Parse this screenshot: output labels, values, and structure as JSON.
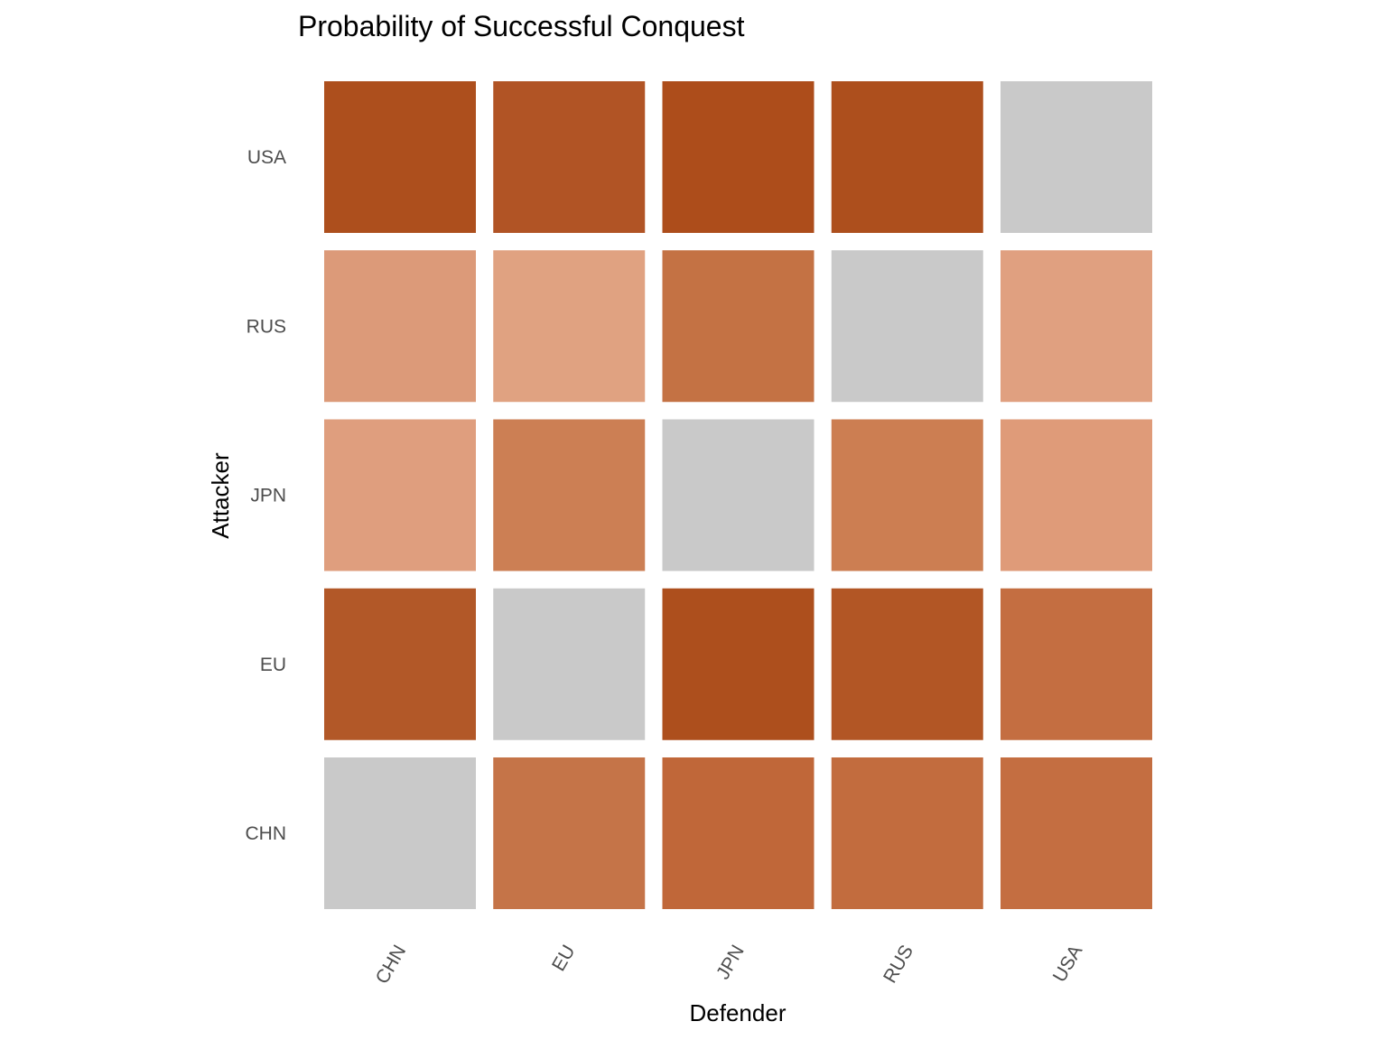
{
  "chart_data": {
    "type": "heatmap",
    "title": "Probability of Successful Conquest",
    "xlabel": "Defender",
    "ylabel": "Attacker",
    "x_categories": [
      "CHN",
      "EU",
      "JPN",
      "RUS",
      "USA"
    ],
    "y_categories": [
      "CHN",
      "EU",
      "JPN",
      "RUS",
      "USA"
    ],
    "cells": [
      {
        "attacker": "USA",
        "defender": "CHN",
        "fill": "#ad4f1d"
      },
      {
        "attacker": "USA",
        "defender": "EU",
        "fill": "#b15425"
      },
      {
        "attacker": "USA",
        "defender": "JPN",
        "fill": "#ad4d1b"
      },
      {
        "attacker": "USA",
        "defender": "RUS",
        "fill": "#ad4f1d"
      },
      {
        "attacker": "USA",
        "defender": "USA",
        "fill": "#c9c9c9"
      },
      {
        "attacker": "RUS",
        "defender": "CHN",
        "fill": "#dc9a79"
      },
      {
        "attacker": "RUS",
        "defender": "EU",
        "fill": "#e0a281"
      },
      {
        "attacker": "RUS",
        "defender": "JPN",
        "fill": "#c47244"
      },
      {
        "attacker": "RUS",
        "defender": "RUS",
        "fill": "#c9c9c9"
      },
      {
        "attacker": "RUS",
        "defender": "USA",
        "fill": "#e0a080"
      },
      {
        "attacker": "JPN",
        "defender": "CHN",
        "fill": "#df9e7e"
      },
      {
        "attacker": "JPN",
        "defender": "EU",
        "fill": "#cc7f54"
      },
      {
        "attacker": "JPN",
        "defender": "JPN",
        "fill": "#c9c9c9"
      },
      {
        "attacker": "JPN",
        "defender": "RUS",
        "fill": "#cc7e52"
      },
      {
        "attacker": "JPN",
        "defender": "USA",
        "fill": "#df9b79"
      },
      {
        "attacker": "EU",
        "defender": "CHN",
        "fill": "#b25828"
      },
      {
        "attacker": "EU",
        "defender": "EU",
        "fill": "#c9c9c9"
      },
      {
        "attacker": "EU",
        "defender": "JPN",
        "fill": "#ad4f1d"
      },
      {
        "attacker": "EU",
        "defender": "RUS",
        "fill": "#b25625"
      },
      {
        "attacker": "EU",
        "defender": "USA",
        "fill": "#c46e41"
      },
      {
        "attacker": "CHN",
        "defender": "CHN",
        "fill": "#c9c9c9"
      },
      {
        "attacker": "CHN",
        "defender": "EU",
        "fill": "#c57448"
      },
      {
        "attacker": "CHN",
        "defender": "JPN",
        "fill": "#c06739"
      },
      {
        "attacker": "CHN",
        "defender": "RUS",
        "fill": "#c26c3e"
      },
      {
        "attacker": "CHN",
        "defender": "USA",
        "fill": "#c46e41"
      }
    ],
    "legend": "none",
    "grid": false
  }
}
